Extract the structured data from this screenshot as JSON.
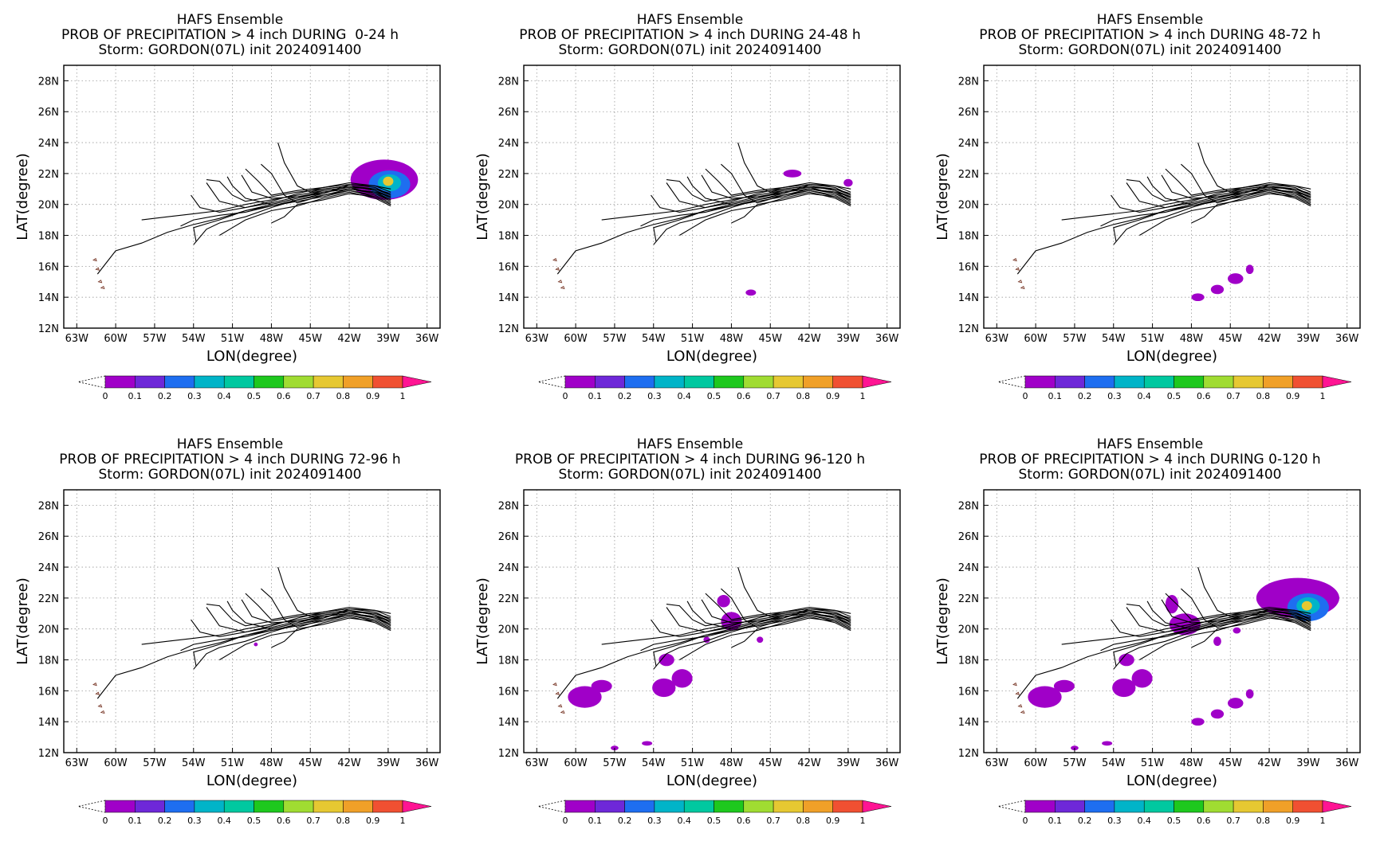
{
  "common": {
    "title_line1": "HAFS Ensemble",
    "title_line3": "Storm: GORDON(07L) init 2024091400",
    "xlabel": "LON(degree)",
    "ylabel": "LAT(degree)",
    "lon_ticks": [
      "63W",
      "60W",
      "57W",
      "54W",
      "51W",
      "48W",
      "45W",
      "42W",
      "39W",
      "36W"
    ],
    "lat_ticks": [
      "12N",
      "14N",
      "16N",
      "18N",
      "20N",
      "22N",
      "24N",
      "26N",
      "28N"
    ],
    "colorbar": {
      "ticks": [
        "0",
        "0.1",
        "0.2",
        "0.3",
        "0.4",
        "0.5",
        "0.6",
        "0.7",
        "0.8",
        "0.9",
        "1"
      ],
      "colors": [
        "#a000c8",
        "#6e28d8",
        "#1e6ef0",
        "#00b4c8",
        "#00c8a0",
        "#1ec81e",
        "#a0dc32",
        "#e6c832",
        "#f0a028",
        "#f05032"
      ],
      "over_color": "#ff1493"
    }
  },
  "panels": [
    {
      "title_line2": "PROB OF PRECIPITATION > 4 inch DURING  0-24 h",
      "id": "p1",
      "precip": [
        {
          "lon": -39.3,
          "lat": 21.6,
          "rx": 2.6,
          "ry": 1.3,
          "prob": 0.05
        },
        {
          "lon": -38.9,
          "lat": 21.3,
          "rx": 1.6,
          "ry": 0.9,
          "prob": 0.2
        },
        {
          "lon": -38.9,
          "lat": 21.4,
          "rx": 0.9,
          "ry": 0.55,
          "prob": 0.35
        },
        {
          "lon": -39.0,
          "lat": 21.5,
          "rx": 0.4,
          "ry": 0.3,
          "prob": 0.7
        }
      ]
    },
    {
      "title_line2": "PROB OF PRECIPITATION > 4 inch DURING 24-48 h",
      "id": "p2",
      "precip": [
        {
          "lon": -43.3,
          "lat": 22.0,
          "rx": 0.7,
          "ry": 0.25,
          "prob": 0.05
        },
        {
          "lon": -39.0,
          "lat": 21.4,
          "rx": 0.35,
          "ry": 0.25,
          "prob": 0.05
        },
        {
          "lon": -46.5,
          "lat": 14.3,
          "rx": 0.4,
          "ry": 0.2,
          "prob": 0.05
        }
      ]
    },
    {
      "title_line2": "PROB OF PRECIPITATION > 4 inch DURING 48-72 h",
      "id": "p3",
      "precip": [
        {
          "lon": -47.5,
          "lat": 14.0,
          "rx": 0.5,
          "ry": 0.25,
          "prob": 0.05
        },
        {
          "lon": -46.0,
          "lat": 14.5,
          "rx": 0.5,
          "ry": 0.3,
          "prob": 0.05
        },
        {
          "lon": -44.6,
          "lat": 15.2,
          "rx": 0.6,
          "ry": 0.35,
          "prob": 0.05
        },
        {
          "lon": -43.5,
          "lat": 15.8,
          "rx": 0.3,
          "ry": 0.3,
          "prob": 0.05
        }
      ]
    },
    {
      "title_line2": "PROB OF PRECIPITATION > 4 inch DURING 72-96 h",
      "id": "p4",
      "precip": [
        {
          "lon": -49.2,
          "lat": 19.0,
          "rx": 0.15,
          "ry": 0.12,
          "prob": 0.05
        }
      ]
    },
    {
      "title_line2": "PROB OF PRECIPITATION > 4 inch DURING 96-120 h",
      "id": "p5",
      "precip": [
        {
          "lon": -59.3,
          "lat": 15.6,
          "rx": 1.3,
          "ry": 0.7,
          "prob": 0.05
        },
        {
          "lon": -58.0,
          "lat": 16.3,
          "rx": 0.8,
          "ry": 0.4,
          "prob": 0.05
        },
        {
          "lon": -53.2,
          "lat": 16.2,
          "rx": 0.9,
          "ry": 0.6,
          "prob": 0.05
        },
        {
          "lon": -51.8,
          "lat": 16.8,
          "rx": 0.8,
          "ry": 0.6,
          "prob": 0.05
        },
        {
          "lon": -53.0,
          "lat": 18.0,
          "rx": 0.6,
          "ry": 0.4,
          "prob": 0.05
        },
        {
          "lon": -48.0,
          "lat": 20.5,
          "rx": 0.8,
          "ry": 0.6,
          "prob": 0.05
        },
        {
          "lon": -48.6,
          "lat": 21.8,
          "rx": 0.5,
          "ry": 0.4,
          "prob": 0.05
        },
        {
          "lon": -49.9,
          "lat": 19.3,
          "rx": 0.25,
          "ry": 0.2,
          "prob": 0.05
        },
        {
          "lon": -45.8,
          "lat": 19.3,
          "rx": 0.25,
          "ry": 0.2,
          "prob": 0.05
        },
        {
          "lon": -57.0,
          "lat": 12.3,
          "rx": 0.3,
          "ry": 0.15,
          "prob": 0.05
        },
        {
          "lon": -54.5,
          "lat": 12.6,
          "rx": 0.4,
          "ry": 0.15,
          "prob": 0.05
        }
      ]
    },
    {
      "title_line2": "PROB OF PRECIPITATION > 4 inch DURING 0-120 h",
      "id": "p6",
      "precip": [
        {
          "lon": -39.8,
          "lat": 22.0,
          "rx": 3.2,
          "ry": 1.3,
          "prob": 0.05
        },
        {
          "lon": -39.0,
          "lat": 21.4,
          "rx": 1.6,
          "ry": 0.9,
          "prob": 0.2
        },
        {
          "lon": -39.0,
          "lat": 21.5,
          "rx": 0.9,
          "ry": 0.55,
          "prob": 0.35
        },
        {
          "lon": -39.1,
          "lat": 21.5,
          "rx": 0.4,
          "ry": 0.3,
          "prob": 0.7
        },
        {
          "lon": -59.3,
          "lat": 15.6,
          "rx": 1.3,
          "ry": 0.7,
          "prob": 0.05
        },
        {
          "lon": -57.8,
          "lat": 16.3,
          "rx": 0.8,
          "ry": 0.4,
          "prob": 0.05
        },
        {
          "lon": -53.2,
          "lat": 16.2,
          "rx": 0.9,
          "ry": 0.6,
          "prob": 0.05
        },
        {
          "lon": -51.8,
          "lat": 16.8,
          "rx": 0.8,
          "ry": 0.6,
          "prob": 0.05
        },
        {
          "lon": -53.0,
          "lat": 18.0,
          "rx": 0.6,
          "ry": 0.4,
          "prob": 0.05
        },
        {
          "lon": -48.5,
          "lat": 20.3,
          "rx": 1.2,
          "ry": 0.7,
          "prob": 0.05
        },
        {
          "lon": -49.5,
          "lat": 21.6,
          "rx": 0.5,
          "ry": 0.6,
          "prob": 0.05
        },
        {
          "lon": -47.5,
          "lat": 14.0,
          "rx": 0.5,
          "ry": 0.25,
          "prob": 0.05
        },
        {
          "lon": -46.0,
          "lat": 14.5,
          "rx": 0.5,
          "ry": 0.3,
          "prob": 0.05
        },
        {
          "lon": -44.6,
          "lat": 15.2,
          "rx": 0.6,
          "ry": 0.35,
          "prob": 0.05
        },
        {
          "lon": -43.5,
          "lat": 15.8,
          "rx": 0.3,
          "ry": 0.3,
          "prob": 0.05
        },
        {
          "lon": -46.0,
          "lat": 19.2,
          "rx": 0.3,
          "ry": 0.3,
          "prob": 0.05
        },
        {
          "lon": -44.5,
          "lat": 19.9,
          "rx": 0.3,
          "ry": 0.2,
          "prob": 0.05
        },
        {
          "lon": -57.0,
          "lat": 12.3,
          "rx": 0.3,
          "ry": 0.15,
          "prob": 0.05
        },
        {
          "lon": -54.5,
          "lat": 12.6,
          "rx": 0.4,
          "ry": 0.15,
          "prob": 0.05
        }
      ]
    }
  ],
  "tracks": [
    [
      [
        -38.8,
        20.5
      ],
      [
        -40,
        20.8
      ],
      [
        -42,
        21.0
      ],
      [
        -44,
        20.8
      ],
      [
        -46,
        20.4
      ],
      [
        -48,
        20.0
      ],
      [
        -50,
        19.6
      ],
      [
        -52,
        19.1
      ],
      [
        -54,
        18.7
      ],
      [
        -56,
        18.2
      ],
      [
        -58,
        17.5
      ],
      [
        -60,
        17.0
      ],
      [
        -61.4,
        15.5
      ]
    ],
    [
      [
        -38.8,
        20.3
      ],
      [
        -40,
        20.7
      ],
      [
        -42,
        21.1
      ],
      [
        -44,
        20.9
      ],
      [
        -46,
        20.6
      ],
      [
        -48,
        20.3
      ],
      [
        -50,
        20.0
      ],
      [
        -52,
        19.6
      ],
      [
        -54,
        19.4
      ],
      [
        -56,
        19.2
      ],
      [
        -58,
        19.0
      ]
    ],
    [
      [
        -38.8,
        20.0
      ],
      [
        -40,
        20.5
      ],
      [
        -42,
        20.9
      ],
      [
        -44,
        20.5
      ],
      [
        -46,
        20.2
      ],
      [
        -48,
        19.9
      ],
      [
        -50,
        19.5
      ],
      [
        -52,
        19.3
      ],
      [
        -54,
        19.0
      ],
      [
        -55,
        18.6
      ]
    ],
    [
      [
        -38.8,
        20.7
      ],
      [
        -40,
        21.0
      ],
      [
        -42,
        21.2
      ],
      [
        -44,
        21.0
      ],
      [
        -46,
        20.8
      ],
      [
        -48,
        20.5
      ],
      [
        -50,
        20.2
      ],
      [
        -51,
        20.6
      ],
      [
        -52,
        21.5
      ],
      [
        -53,
        21.6
      ]
    ],
    [
      [
        -38.8,
        20.8
      ],
      [
        -40,
        21.2
      ],
      [
        -42,
        21.3
      ],
      [
        -44,
        21.1
      ],
      [
        -46,
        20.9
      ],
      [
        -48,
        20.6
      ],
      [
        -49,
        21.5
      ],
      [
        -50,
        22.3
      ]
    ],
    [
      [
        -38.8,
        20.1
      ],
      [
        -40,
        20.6
      ],
      [
        -42,
        20.9
      ],
      [
        -44,
        20.6
      ],
      [
        -46,
        20.1
      ],
      [
        -47,
        20.6
      ],
      [
        -48,
        22.0
      ],
      [
        -48.8,
        22.6
      ]
    ],
    [
      [
        -38.8,
        20.4
      ],
      [
        -40,
        20.9
      ],
      [
        -42,
        21.2
      ],
      [
        -44,
        21.0
      ],
      [
        -45,
        20.8
      ],
      [
        -46,
        21.2
      ],
      [
        -47,
        22.7
      ],
      [
        -47.5,
        24.0
      ]
    ],
    [
      [
        -38.8,
        20.6
      ],
      [
        -40,
        21.1
      ],
      [
        -42,
        21.3
      ],
      [
        -44,
        20.7
      ],
      [
        -46,
        20.3
      ],
      [
        -48,
        19.8
      ],
      [
        -50,
        19.2
      ],
      [
        -52,
        18.8
      ],
      [
        -53,
        18.4
      ],
      [
        -54,
        17.4
      ]
    ],
    [
      [
        -38.8,
        19.9
      ],
      [
        -40,
        20.4
      ],
      [
        -42,
        20.8
      ],
      [
        -44,
        20.4
      ],
      [
        -46,
        19.9
      ],
      [
        -48,
        19.6
      ],
      [
        -50,
        19.0
      ],
      [
        -51,
        18.5
      ],
      [
        -52,
        18.0
      ]
    ],
    [
      [
        -38.8,
        20.2
      ],
      [
        -40,
        20.7
      ],
      [
        -42,
        21.0
      ],
      [
        -44,
        20.8
      ],
      [
        -46,
        20.5
      ],
      [
        -48,
        20.1
      ],
      [
        -50,
        19.8
      ],
      [
        -52,
        20.2
      ],
      [
        -53,
        21.4
      ]
    ],
    [
      [
        -38.8,
        20.6
      ],
      [
        -40,
        21.0
      ],
      [
        -42,
        21.1
      ],
      [
        -44,
        20.9
      ],
      [
        -46,
        20.4
      ],
      [
        -48,
        20.0
      ],
      [
        -50,
        20.4
      ],
      [
        -51,
        21.2
      ],
      [
        -51.4,
        21.8
      ]
    ],
    [
      [
        -38.8,
        20.3
      ],
      [
        -40,
        20.8
      ],
      [
        -42,
        21.0
      ],
      [
        -44,
        20.6
      ],
      [
        -46,
        20.3
      ],
      [
        -48,
        19.9
      ],
      [
        -50,
        19.6
      ],
      [
        -52,
        19.0
      ],
      [
        -54,
        18.5
      ],
      [
        -53.8,
        17.6
      ]
    ],
    [
      [
        -38.8,
        20.5
      ],
      [
        -40,
        20.9
      ],
      [
        -42,
        21.2
      ],
      [
        -44,
        20.7
      ],
      [
        -46,
        20.5
      ],
      [
        -48,
        20.4
      ],
      [
        -49.5,
        20.8
      ],
      [
        -50.3,
        21.9
      ]
    ],
    [
      [
        -38.8,
        21.0
      ],
      [
        -40,
        21.2
      ],
      [
        -42,
        21.4
      ],
      [
        -44,
        21.1
      ],
      [
        -46,
        20.7
      ],
      [
        -48,
        20.2
      ],
      [
        -50,
        19.8
      ],
      [
        -52,
        19.5
      ],
      [
        -53.5,
        19.8
      ],
      [
        -54.2,
        20.6
      ]
    ],
    [
      [
        -38.8,
        20.0
      ],
      [
        -40,
        20.5
      ],
      [
        -42,
        20.7
      ],
      [
        -44,
        20.3
      ],
      [
        -46,
        20.0
      ],
      [
        -47,
        19.2
      ],
      [
        -48,
        18.8
      ]
    ]
  ]
}
